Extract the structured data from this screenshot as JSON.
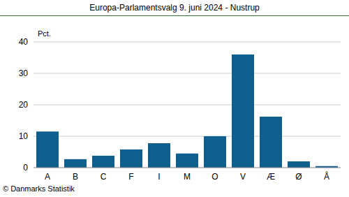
{
  "chart_data": {
    "type": "bar",
    "title": "Europa-Parlamentsvalg 9. juni 2024 - Nustrup",
    "y_label": "Pct.",
    "footer": "© Danmarks Statistik",
    "categories": [
      "A",
      "B",
      "C",
      "F",
      "I",
      "M",
      "O",
      "V",
      "Æ",
      "Ø",
      "Å"
    ],
    "values": [
      11.5,
      2.7,
      3.8,
      5.8,
      7.8,
      4.5,
      10,
      36,
      16.2,
      2,
      0.5
    ],
    "color": "#0f5f8f",
    "ylim": [
      0,
      40
    ],
    "yticks": [
      0,
      10,
      20,
      30,
      40
    ],
    "grid": true
  }
}
